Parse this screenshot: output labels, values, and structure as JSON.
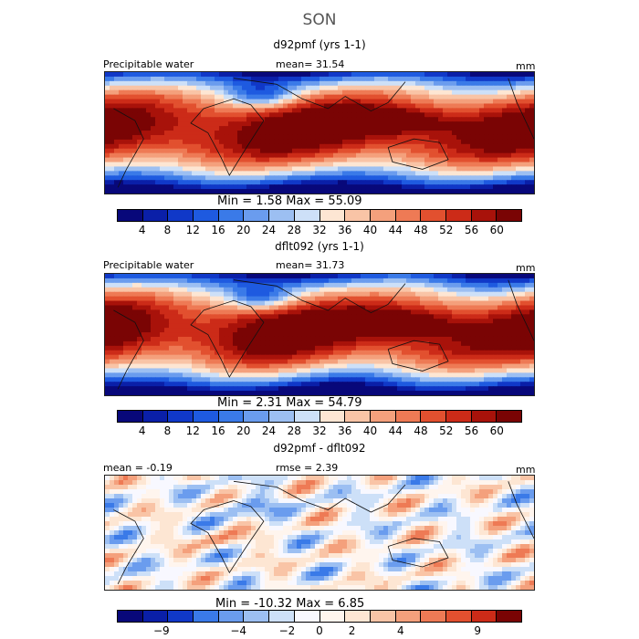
{
  "title": "SON",
  "panels": [
    {
      "heading": "d92pmf (yrs 1-1)",
      "left_label": "Precipitable water",
      "center_label": "mean=  31.54",
      "unit": "mm",
      "min_max": "Min =     1.58  Max =   55.09"
    },
    {
      "heading": "dflt092 (yrs 1-1)",
      "left_label": "Precipitable water",
      "center_label": "mean=  31.73",
      "unit": "mm",
      "min_max": "Min =     2.31  Max =   54.79"
    },
    {
      "heading": "d92pmf - dflt092",
      "left_label": "mean =  -0.19",
      "center_label": "rmse =    2.39",
      "unit": "mm",
      "min_max": "Min =  -10.32  Max =     6.85"
    }
  ],
  "chart_data": [
    {
      "type": "heatmap",
      "title": "d92pmf (yrs 1-1)",
      "field": "Precipitable water",
      "units": "mm",
      "mean": 31.54,
      "min": 1.58,
      "max": 55.09,
      "colorbar_ticks": [
        "4",
        "8",
        "12",
        "16",
        "20",
        "24",
        "28",
        "32",
        "36",
        "40",
        "44",
        "48",
        "52",
        "56",
        "60"
      ],
      "colors": [
        "#08087a",
        "#0a1fa8",
        "#1038c8",
        "#1e5ae0",
        "#3a7ae8",
        "#6a9cee",
        "#9cbff2",
        "#cde0f8",
        "#fde6d3",
        "#f9c4a6",
        "#f4a07c",
        "#ee7a55",
        "#e2502f",
        "#cc2b18",
        "#a8120a",
        "#7a0404"
      ]
    },
    {
      "type": "heatmap",
      "title": "dflt092 (yrs 1-1)",
      "field": "Precipitable water",
      "units": "mm",
      "mean": 31.73,
      "min": 2.31,
      "max": 54.79,
      "colorbar_ticks": [
        "4",
        "8",
        "12",
        "16",
        "20",
        "24",
        "28",
        "32",
        "36",
        "40",
        "44",
        "48",
        "52",
        "56",
        "60"
      ],
      "colors": [
        "#08087a",
        "#0a1fa8",
        "#1038c8",
        "#1e5ae0",
        "#3a7ae8",
        "#6a9cee",
        "#9cbff2",
        "#cde0f8",
        "#fde6d3",
        "#f9c4a6",
        "#f4a07c",
        "#ee7a55",
        "#e2502f",
        "#cc2b18",
        "#a8120a",
        "#7a0404"
      ]
    },
    {
      "type": "heatmap",
      "title": "d92pmf - dflt092",
      "units": "mm",
      "mean": -0.19,
      "rmse": 2.39,
      "min": -10.32,
      "max": 6.85,
      "colorbar_ticks": [
        "-9",
        "-4",
        "-2",
        "0",
        "2",
        "4",
        "9"
      ],
      "colors": [
        "#08087a",
        "#0a1fa8",
        "#1038c8",
        "#3a7ae8",
        "#6a9cee",
        "#9cbff2",
        "#cde0f8",
        "#f8f8ff",
        "#fff5ee",
        "#fde6d3",
        "#f9c4a6",
        "#f4a07c",
        "#ee7a55",
        "#e2502f",
        "#cc2b18",
        "#7a0404"
      ]
    }
  ]
}
